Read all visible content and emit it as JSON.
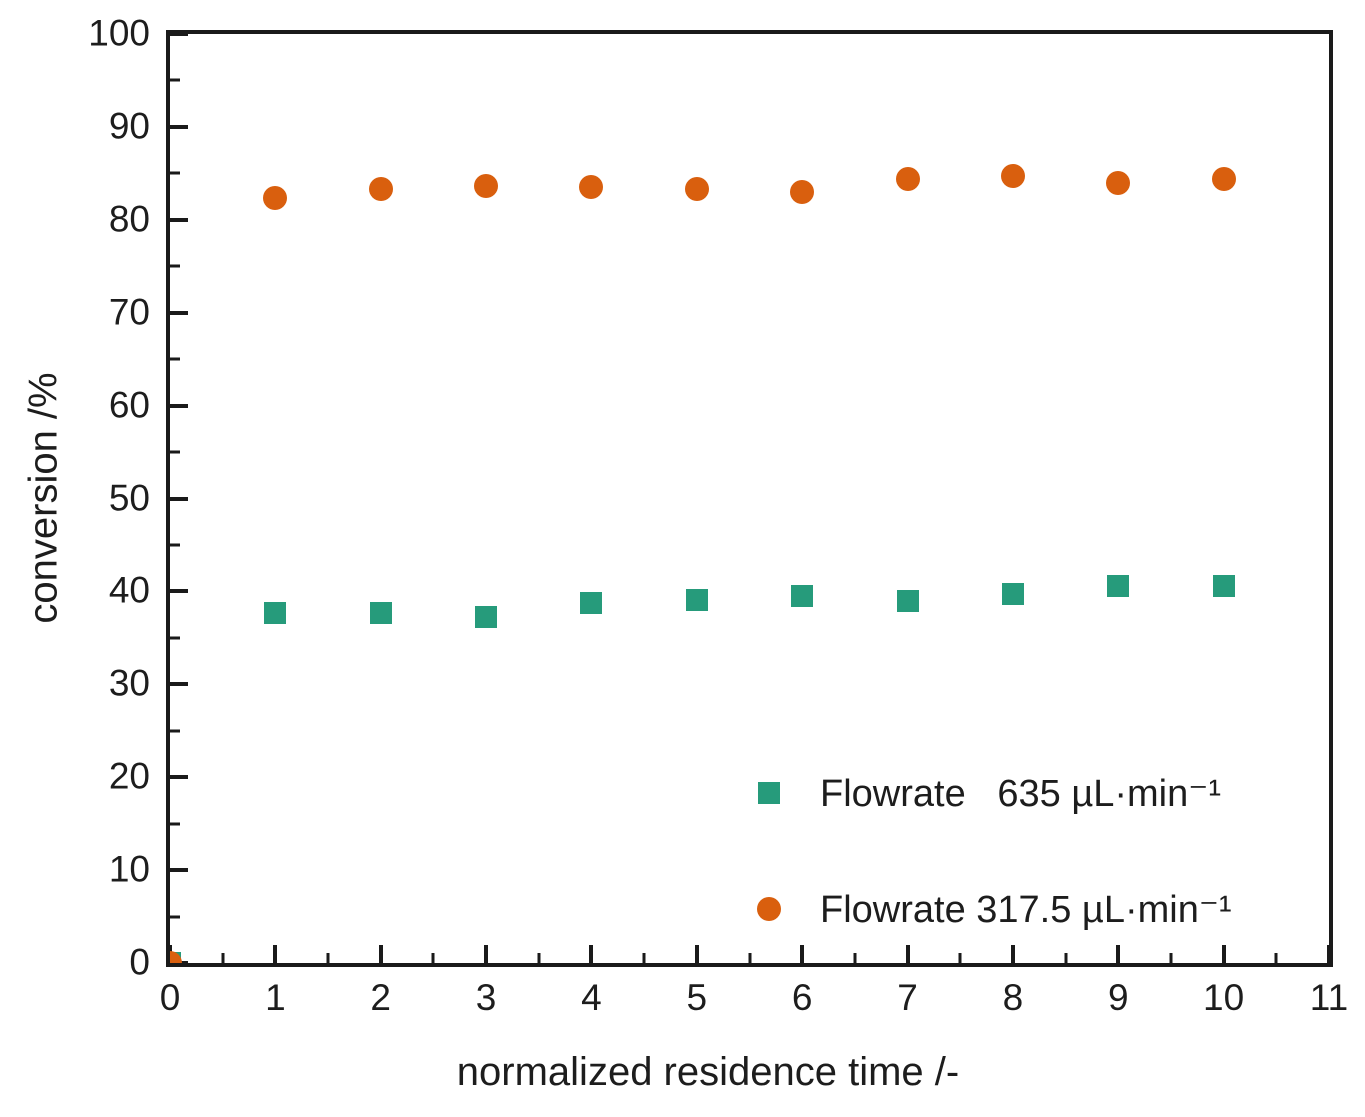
{
  "figure": {
    "background": "#ffffff",
    "text_color": "#1d1d1d",
    "axis_color": "#1a1a1a"
  },
  "axes": {
    "xlabel": "normalized residence time /-",
    "ylabel": "conversion /%"
  },
  "legend": {
    "position": "lower right",
    "items": [
      {
        "label": "Flowrate   635 µL·min⁻¹",
        "marker": "square",
        "color": "#269B7B"
      },
      {
        "label": "Flowrate 317.5 µL·min⁻¹",
        "marker": "circle",
        "color": "#D95F0E"
      }
    ]
  },
  "chart_data": {
    "type": "scatter",
    "title": "",
    "xlabel": "normalized residence time /-",
    "ylabel": "conversion /%",
    "xlim": [
      0,
      11
    ],
    "ylim": [
      0,
      100
    ],
    "x_ticks": [
      0,
      1,
      2,
      3,
      4,
      5,
      6,
      7,
      8,
      9,
      10,
      11
    ],
    "x_minor_step": 0.5,
    "y_ticks": [
      0,
      10,
      20,
      30,
      40,
      50,
      60,
      70,
      80,
      90,
      100
    ],
    "y_minor_step": 5,
    "grid": false,
    "frame": "box",
    "legend_position": "lower right",
    "series": [
      {
        "name": "Flowrate   635 µL·min⁻¹",
        "marker": "square",
        "color": "#269B7B",
        "x": [
          0,
          1,
          2,
          3,
          4,
          5,
          6,
          7,
          8,
          9,
          10
        ],
        "y": [
          0,
          37.7,
          37.7,
          37.2,
          38.7,
          39.1,
          39.5,
          39.0,
          39.7,
          40.6,
          40.6
        ]
      },
      {
        "name": "Flowrate 317.5 µL·min⁻¹",
        "marker": "circle",
        "color": "#D95F0E",
        "x": [
          0,
          1,
          2,
          3,
          4,
          5,
          6,
          7,
          8,
          9,
          10
        ],
        "y": [
          0,
          82.3,
          83.3,
          83.6,
          83.5,
          83.3,
          83.0,
          84.4,
          84.7,
          84.0,
          84.4
        ]
      }
    ]
  }
}
